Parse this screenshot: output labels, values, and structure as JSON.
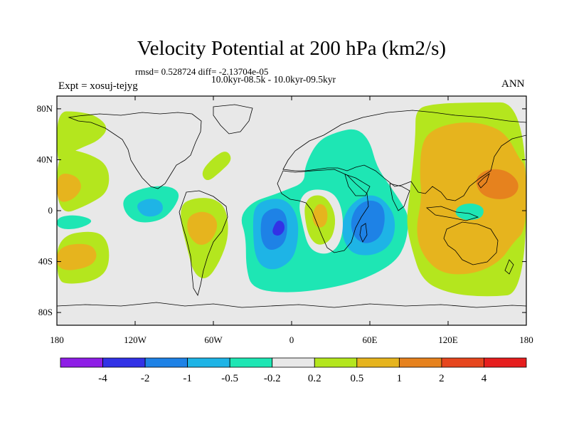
{
  "chart_data": {
    "type": "contour-map",
    "title": "Velocity Potential at 200 hPa (km2/s)",
    "stats": "rmsd= 0.528724 diff= -2.13704e-05",
    "experiment_label": "Expt = xosuj-tejyg",
    "comparison": "10.0kyr-08.5k - 10.0kyr-09.5kyr",
    "season": "ANN",
    "lon_range": [
      -180,
      180
    ],
    "lat_range": [
      -90,
      90
    ],
    "x_ticks": [
      {
        "lon": -180,
        "label": "180"
      },
      {
        "lon": -120,
        "label": "120W"
      },
      {
        "lon": -60,
        "label": "60W"
      },
      {
        "lon": 0,
        "label": "0"
      },
      {
        "lon": 60,
        "label": "60E"
      },
      {
        "lon": 120,
        "label": "120E"
      },
      {
        "lon": 180,
        "label": "180"
      }
    ],
    "y_ticks": [
      {
        "lat": 80,
        "label": "80N"
      },
      {
        "lat": 40,
        "label": "40N"
      },
      {
        "lat": 0,
        "label": "0"
      },
      {
        "lat": -40,
        "label": "40S"
      },
      {
        "lat": -80,
        "label": "80S"
      }
    ],
    "colorbar": {
      "labels": [
        "-4",
        "-2",
        "-1",
        "-0.5",
        "-0.2",
        "0.2",
        "0.5",
        "1",
        "2",
        "4"
      ],
      "colors": [
        "#8e1ee6",
        "#3232e6",
        "#1e82e6",
        "#1eb4e6",
        "#1ee6b4",
        "#e8e8e8",
        "#b4e61e",
        "#e6b41e",
        "#e6821e",
        "#e6461e",
        "#e61e1e"
      ]
    },
    "regions": [
      {
        "name": "atlantic-africa-low",
        "level": "-0.2",
        "color": "#1ee6b4",
        "points": [
          [
            -35,
            -20
          ],
          [
            -40,
            -5
          ],
          [
            -30,
            7
          ],
          [
            -15,
            12
          ],
          [
            -5,
            16
          ],
          [
            10,
            22
          ],
          [
            10,
            35
          ],
          [
            20,
            55
          ],
          [
            35,
            62
          ],
          [
            50,
            65
          ],
          [
            60,
            55
          ],
          [
            65,
            35
          ],
          [
            75,
            20
          ],
          [
            85,
            5
          ],
          [
            90,
            -5
          ],
          [
            88,
            -25
          ],
          [
            80,
            -40
          ],
          [
            60,
            -52
          ],
          [
            35,
            -60
          ],
          [
            0,
            -65
          ],
          [
            -30,
            -62
          ],
          [
            -35,
            -45
          ]
        ]
      },
      {
        "name": "atlantic-min-1",
        "level": "-0.5",
        "color": "#1eb4e6",
        "points": [
          [
            -30,
            -10
          ],
          [
            -28,
            5
          ],
          [
            -15,
            10
          ],
          [
            -3,
            8
          ],
          [
            5,
            -5
          ],
          [
            5,
            -25
          ],
          [
            0,
            -40
          ],
          [
            -15,
            -48
          ],
          [
            -28,
            -40
          ]
        ]
      },
      {
        "name": "atlantic-min-2",
        "level": "-1",
        "color": "#1e82e6",
        "points": [
          [
            -24,
            -12
          ],
          [
            -22,
            -2
          ],
          [
            -12,
            3
          ],
          [
            -4,
            -2
          ],
          [
            -3,
            -18
          ],
          [
            -7,
            -28
          ],
          [
            -17,
            -32
          ],
          [
            -23,
            -25
          ]
        ]
      },
      {
        "name": "atlantic-min-3",
        "level": "-2",
        "color": "#3232e6",
        "points": [
          [
            -15,
            -15
          ],
          [
            -11,
            -7
          ],
          [
            -6,
            -9
          ],
          [
            -5,
            -15
          ],
          [
            -9,
            -20
          ],
          [
            -14,
            -19
          ]
        ]
      },
      {
        "name": "indian-min-1",
        "level": "-0.5",
        "color": "#1eb4e6",
        "points": [
          [
            38,
            -10
          ],
          [
            45,
            5
          ],
          [
            58,
            13
          ],
          [
            70,
            10
          ],
          [
            80,
            -5
          ],
          [
            78,
            -25
          ],
          [
            65,
            -35
          ],
          [
            48,
            -35
          ],
          [
            40,
            -25
          ]
        ]
      },
      {
        "name": "indian-min-2",
        "level": "-1",
        "color": "#1e82e6",
        "points": [
          [
            45,
            -8
          ],
          [
            50,
            4
          ],
          [
            60,
            9
          ],
          [
            70,
            5
          ],
          [
            72,
            -8
          ],
          [
            68,
            -22
          ],
          [
            56,
            -27
          ],
          [
            47,
            -20
          ]
        ]
      },
      {
        "name": "africa-hole",
        "level": "0.2",
        "color": "#e8e8e8",
        "points": [
          [
            5,
            7
          ],
          [
            13,
            17
          ],
          [
            30,
            16
          ],
          [
            38,
            5
          ],
          [
            40,
            -15
          ],
          [
            35,
            -30
          ],
          [
            25,
            -35
          ],
          [
            13,
            -30
          ],
          [
            8,
            -10
          ]
        ]
      },
      {
        "name": "africa-pos-1",
        "level": "0.2",
        "color": "#b4e61e",
        "points": [
          [
            10,
            5
          ],
          [
            15,
            12
          ],
          [
            25,
            12
          ],
          [
            32,
            2
          ],
          [
            34,
            -10
          ],
          [
            30,
            -24
          ],
          [
            20,
            -28
          ],
          [
            13,
            -20
          ],
          [
            10,
            -5
          ]
        ]
      },
      {
        "name": "africa-pos-2",
        "level": "0.5",
        "color": "#e6b41e",
        "points": [
          [
            16,
            -2
          ],
          [
            20,
            6
          ],
          [
            26,
            4
          ],
          [
            28,
            -4
          ],
          [
            26,
            -12
          ],
          [
            20,
            -14
          ],
          [
            16,
            -8
          ]
        ]
      },
      {
        "name": "pacific-west-pos",
        "level": "0.2",
        "color": "#b4e61e",
        "points": [
          [
            95,
            80
          ],
          [
            110,
            84
          ],
          [
            140,
            85
          ],
          [
            180,
            85
          ],
          [
            180,
            -65
          ],
          [
            150,
            -68
          ],
          [
            120,
            -65
          ],
          [
            100,
            -55
          ],
          [
            92,
            -30
          ],
          [
            88,
            -10
          ],
          [
            90,
            10
          ],
          [
            93,
            35
          ],
          [
            95,
            60
          ]
        ]
      },
      {
        "name": "pacific-west-pos-2",
        "level": "0.5",
        "color": "#e6b41e",
        "points": [
          [
            100,
            55
          ],
          [
            110,
            65
          ],
          [
            130,
            70
          ],
          [
            150,
            68
          ],
          [
            165,
            60
          ],
          [
            175,
            40
          ],
          [
            180,
            35
          ],
          [
            180,
            -15
          ],
          [
            170,
            -25
          ],
          [
            160,
            -40
          ],
          [
            140,
            -50
          ],
          [
            115,
            -50
          ],
          [
            100,
            -35
          ],
          [
            95,
            -15
          ],
          [
            100,
            10
          ],
          [
            98,
            30
          ]
        ]
      },
      {
        "name": "pacific-west-pos-3",
        "level": "1",
        "color": "#e6821e",
        "points": [
          [
            140,
            25
          ],
          [
            150,
            33
          ],
          [
            165,
            32
          ],
          [
            175,
            22
          ],
          [
            172,
            12
          ],
          [
            160,
            8
          ],
          [
            145,
            12
          ]
        ]
      },
      {
        "name": "seasia-neg",
        "level": "-0.2",
        "color": "#1ee6b4",
        "points": [
          [
            125,
            0
          ],
          [
            130,
            5
          ],
          [
            140,
            6
          ],
          [
            148,
            2
          ],
          [
            146,
            -6
          ],
          [
            135,
            -8
          ],
          [
            127,
            -5
          ]
        ]
      },
      {
        "name": "pacific-east-pos",
        "level": "0.2",
        "color": "#b4e61e",
        "points": [
          [
            -180,
            78
          ],
          [
            -165,
            78
          ],
          [
            -150,
            75
          ],
          [
            -140,
            65
          ],
          [
            -148,
            55
          ],
          [
            -160,
            50
          ],
          [
            -170,
            45
          ],
          [
            -175,
            40
          ],
          [
            -180,
            38
          ]
        ]
      },
      {
        "name": "pacific-east-pos-b",
        "level": "0.2",
        "color": "#b4e61e",
        "points": [
          [
            -180,
            50
          ],
          [
            -155,
            45
          ],
          [
            -140,
            35
          ],
          [
            -140,
            15
          ],
          [
            -155,
            5
          ],
          [
            -180,
            -5
          ]
        ]
      },
      {
        "name": "pacific-east-pos-c",
        "level": "0.2",
        "color": "#b4e61e",
        "points": [
          [
            -180,
            -20
          ],
          [
            -150,
            -15
          ],
          [
            -140,
            -25
          ],
          [
            -140,
            -45
          ],
          [
            -150,
            -55
          ],
          [
            -170,
            -58
          ],
          [
            -180,
            -55
          ]
        ]
      },
      {
        "name": "pacific-east-pos-d",
        "level": "0.5",
        "color": "#e6b41e",
        "points": [
          [
            -180,
            30
          ],
          [
            -165,
            28
          ],
          [
            -160,
            18
          ],
          [
            -168,
            8
          ],
          [
            -180,
            6
          ]
        ]
      },
      {
        "name": "pacific-east-pos-e",
        "level": "0.5",
        "color": "#e6b41e",
        "points": [
          [
            -180,
            -28
          ],
          [
            -155,
            -25
          ],
          [
            -148,
            -35
          ],
          [
            -155,
            -45
          ],
          [
            -180,
            -48
          ]
        ]
      },
      {
        "name": "pacific-east-neg",
        "level": "-0.2",
        "color": "#1ee6b4",
        "points": [
          [
            -180,
            -5
          ],
          [
            -165,
            -3
          ],
          [
            -150,
            -8
          ],
          [
            -165,
            -15
          ],
          [
            -180,
            -14
          ]
        ]
      },
      {
        "name": "americas-pos",
        "level": "0.2",
        "color": "#b4e61e",
        "points": [
          [
            -85,
            5
          ],
          [
            -75,
            10
          ],
          [
            -60,
            10
          ],
          [
            -50,
            2
          ],
          [
            -48,
            -20
          ],
          [
            -55,
            -40
          ],
          [
            -65,
            -55
          ],
          [
            -75,
            -50
          ],
          [
            -80,
            -30
          ],
          [
            -85,
            -10
          ]
        ]
      },
      {
        "name": "americas-pos-2",
        "level": "0.5",
        "color": "#e6b41e",
        "points": [
          [
            -80,
            -5
          ],
          [
            -70,
            0
          ],
          [
            -60,
            -3
          ],
          [
            -56,
            -12
          ],
          [
            -62,
            -25
          ],
          [
            -72,
            -28
          ],
          [
            -80,
            -18
          ]
        ]
      },
      {
        "name": "north-america-pos",
        "level": "0.2",
        "color": "#b4e61e",
        "points": [
          [
            -70,
            30
          ],
          [
            -60,
            42
          ],
          [
            -50,
            48
          ],
          [
            -45,
            40
          ],
          [
            -55,
            30
          ],
          [
            -65,
            22
          ]
        ]
      },
      {
        "name": "east-pacific-neg-1",
        "level": "-0.2",
        "color": "#1ee6b4",
        "points": [
          [
            -130,
            10
          ],
          [
            -115,
            18
          ],
          [
            -95,
            20
          ],
          [
            -85,
            14
          ],
          [
            -90,
            2
          ],
          [
            -100,
            -8
          ],
          [
            -118,
            -10
          ],
          [
            -128,
            -2
          ]
        ]
      },
      {
        "name": "east-pacific-neg-2",
        "level": "-0.5",
        "color": "#1eb4e6",
        "points": [
          [
            -120,
            5
          ],
          [
            -110,
            10
          ],
          [
            -100,
            8
          ],
          [
            -98,
            0
          ],
          [
            -105,
            -5
          ],
          [
            -115,
            -4
          ]
        ]
      }
    ]
  }
}
